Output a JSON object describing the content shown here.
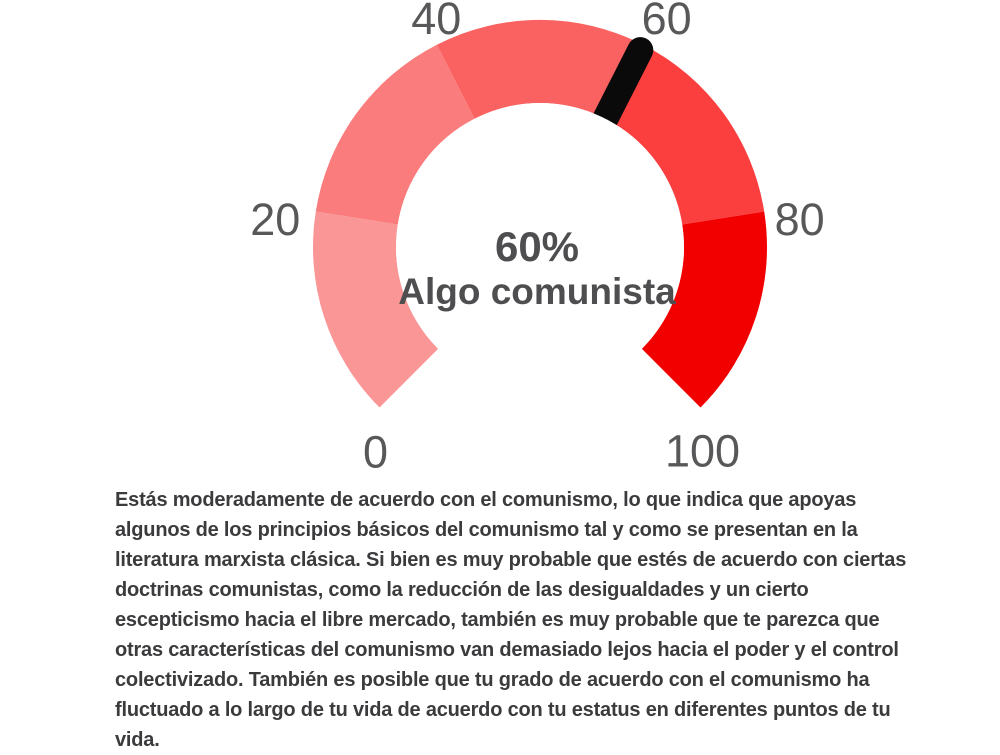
{
  "page": {
    "background_color": "#ffffff"
  },
  "chart_data": {
    "type": "gauge",
    "min": 0,
    "max": 100,
    "value": 60,
    "start_angle": 225,
    "end_angle": -45,
    "tick_labels": [
      "0",
      "20",
      "40",
      "60",
      "80",
      "100"
    ],
    "segments": [
      {
        "from": 0,
        "to": 20,
        "color": "#fa9696"
      },
      {
        "from": 20,
        "to": 40,
        "color": "#fa7c7c"
      },
      {
        "from": 40,
        "to": 60,
        "color": "#fa6262"
      },
      {
        "from": 60,
        "to": 80,
        "color": "#fb3e3e"
      },
      {
        "from": 80,
        "to": 100,
        "color": "#f20000"
      }
    ],
    "needle_color": "#0a0a0a",
    "tick_label_color": "#58585a",
    "center_label": "60%",
    "center_sublabel": "Algo comunista",
    "center_label_color": "#4e4e50",
    "legend": "none",
    "grid": false
  },
  "result": {
    "description": "Estás moderadamente de acuerdo con el comunismo, lo que indica que apoyas algunos de los principios básicos del comunismo tal y como se presentan en la literatura marxista clásica. Si bien es muy probable que estés de acuerdo con ciertas doctrinas comunistas, como la reducción de las desigualdades y un cierto escepticismo hacia el libre mercado, también es muy probable que te parezca que otras características del comunismo van demasiado lejos hacia el poder y el control colectivizado. También es posible que tu grado de acuerdo con el comunismo ha fluctuado a lo largo de tu vida de acuerdo con tu estatus en diferentes puntos de tu vida."
  }
}
